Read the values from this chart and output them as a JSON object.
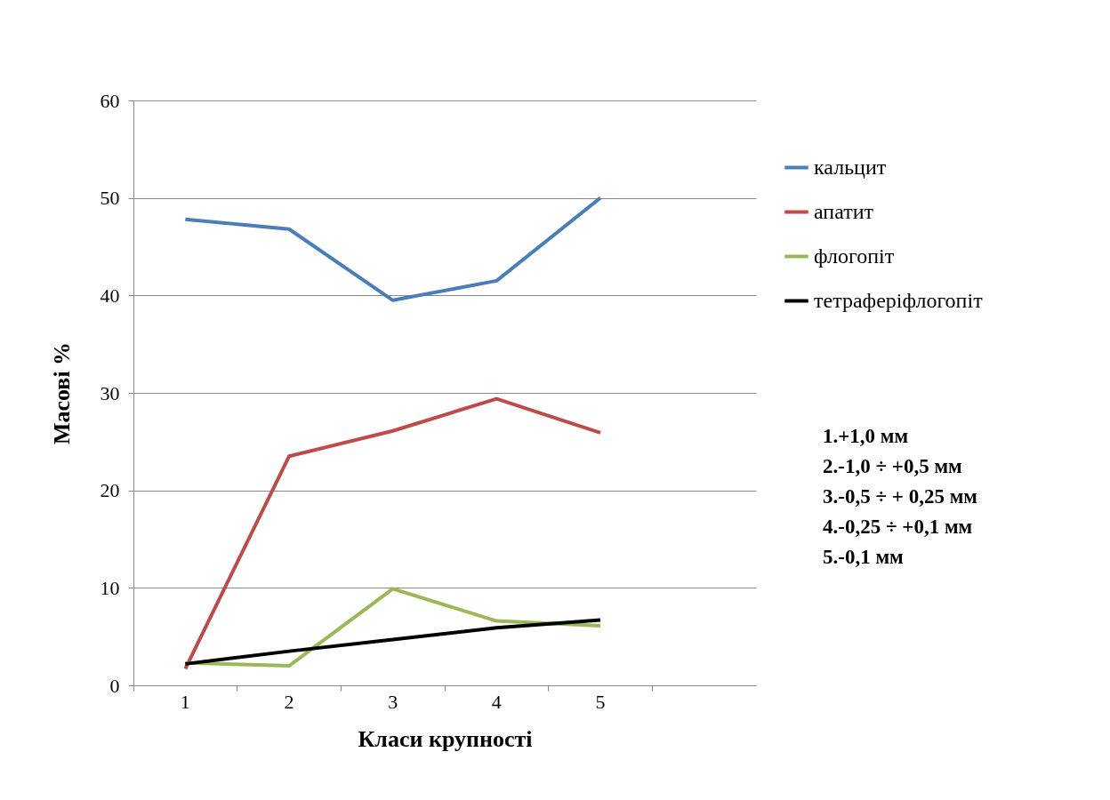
{
  "chart_data": {
    "type": "line",
    "xlabel": "Класи крупності",
    "ylabel": "Масові %",
    "categories": [
      "1",
      "2",
      "3",
      "4",
      "5",
      null
    ],
    "series": [
      {
        "name": "кальцит",
        "color": "#4a7ebb",
        "values": [
          47.8,
          46.8,
          39.5,
          41.5,
          50.0,
          null
        ]
      },
      {
        "name": "апатит",
        "color": "#be4b48",
        "values": [
          1.7,
          23.5,
          26.1,
          29.4,
          25.9,
          null
        ]
      },
      {
        "name": "флогопіт",
        "color": "#98b954",
        "values": [
          2.3,
          2.0,
          9.9,
          6.6,
          6.1,
          null
        ]
      },
      {
        "name": "тетраферіфлогопіт",
        "color": "#000000",
        "values": [
          2.2,
          3.5,
          4.7,
          5.9,
          6.7,
          null
        ]
      }
    ],
    "ylim": [
      0,
      60
    ],
    "yticks": [
      0,
      10,
      20,
      30,
      40,
      50,
      60
    ],
    "grid": "y",
    "legend": "right",
    "marker": "none",
    "annotations": [
      "1.+1,0 мм",
      "2.-1,0 ÷ +0,5 мм",
      "3.-0,5 ÷ + 0,25 мм",
      "4.-0,25 ÷ +0,1 мм",
      "5.-0,1 мм"
    ]
  }
}
